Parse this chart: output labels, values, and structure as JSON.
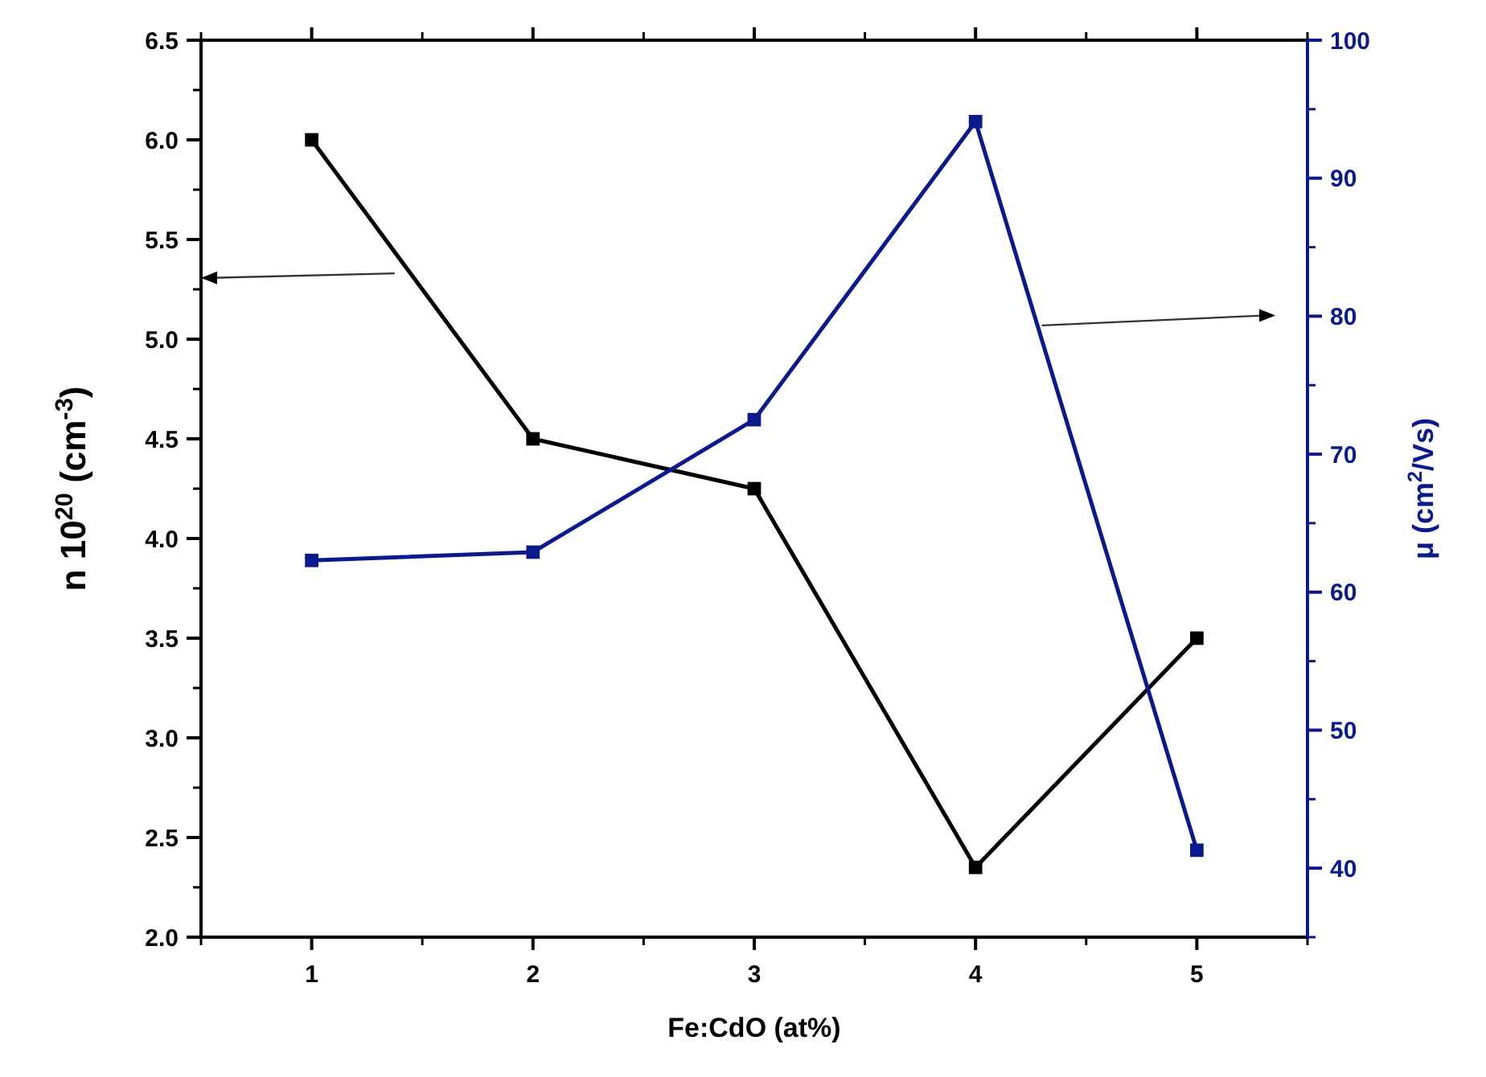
{
  "chart_data": {
    "type": "line",
    "xlabel": "Fe:CdO (at%)",
    "ylabel": "n 10$^{20}$ (cm$^{-3}$)",
    "y2label": "μ (cm$^{2}$/Vs)",
    "x": [
      1,
      2,
      3,
      4,
      5
    ],
    "series": [
      {
        "color": "#000000",
        "values": [
          6.0,
          4.5,
          4.25,
          2.35,
          3.5
        ]
      },
      {
        "color": "#0a1a8c",
        "axis": "y2",
        "values": [
          62.3,
          62.9,
          72.5,
          94.1,
          41.3
        ]
      }
    ],
    "xlim": [
      0.5,
      5.5
    ],
    "xticks": [
      1,
      2,
      3,
      4,
      5
    ],
    "ylim": [
      2.0,
      6.5
    ],
    "yticks": [
      {
        "value": 2,
        "label": "2.0"
      },
      {
        "value": 2.5,
        "label": "2.5"
      },
      {
        "value": 3,
        "label": "3.0"
      },
      {
        "value": 3.5,
        "label": "3.5"
      },
      {
        "value": 4,
        "label": "4.0"
      },
      {
        "value": 4.5,
        "label": "4.5"
      },
      {
        "value": 5,
        "label": "5.0"
      },
      {
        "value": 5.5,
        "label": "5.5"
      },
      {
        "value": 6,
        "label": "6.0"
      },
      {
        "value": 6.5,
        "label": "6.5"
      }
    ],
    "y2lim": [
      35,
      100
    ],
    "y2ticks": [
      40,
      50,
      60,
      70,
      80,
      90,
      100
    ],
    "marker": "square",
    "line_style": "solid"
  }
}
